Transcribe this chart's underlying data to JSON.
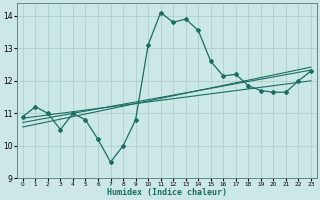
{
  "xlabel": "Humidex (Indice chaleur)",
  "bg_color": "#cce8e6",
  "grid_color": "#aaccca",
  "line_color": "#1a6e64",
  "xlim": [
    -0.5,
    23.5
  ],
  "ylim": [
    9,
    14.4
  ],
  "x_data": [
    0,
    1,
    2,
    3,
    4,
    5,
    6,
    7,
    8,
    9,
    10,
    11,
    12,
    13,
    14,
    15,
    16,
    17,
    18,
    19,
    20,
    21,
    22,
    23
  ],
  "y_main": [
    10.9,
    11.2,
    11.0,
    10.5,
    11.0,
    10.8,
    10.2,
    9.5,
    10.0,
    10.8,
    13.1,
    14.1,
    13.8,
    13.9,
    13.55,
    12.6,
    12.15,
    12.2,
    11.85,
    11.7,
    11.65,
    11.65,
    12.0,
    12.3
  ],
  "reg_y1": [
    10.85,
    10.9,
    10.95,
    11.0,
    11.05,
    11.1,
    11.15,
    11.2,
    11.25,
    11.3,
    11.35,
    11.4,
    11.45,
    11.5,
    11.55,
    11.6,
    11.65,
    11.7,
    11.75,
    11.8,
    11.85,
    11.9,
    11.95,
    12.0
  ],
  "reg_y2": [
    10.72,
    10.79,
    10.86,
    10.93,
    11.0,
    11.07,
    11.14,
    11.21,
    11.28,
    11.35,
    11.42,
    11.49,
    11.56,
    11.63,
    11.7,
    11.77,
    11.84,
    11.91,
    11.98,
    12.05,
    12.12,
    12.19,
    12.26,
    12.33
  ],
  "reg_y3": [
    10.58,
    10.66,
    10.74,
    10.82,
    10.9,
    10.98,
    11.06,
    11.14,
    11.22,
    11.3,
    11.38,
    11.46,
    11.54,
    11.62,
    11.7,
    11.78,
    11.86,
    11.94,
    12.02,
    12.1,
    12.18,
    12.26,
    12.34,
    12.42
  ]
}
